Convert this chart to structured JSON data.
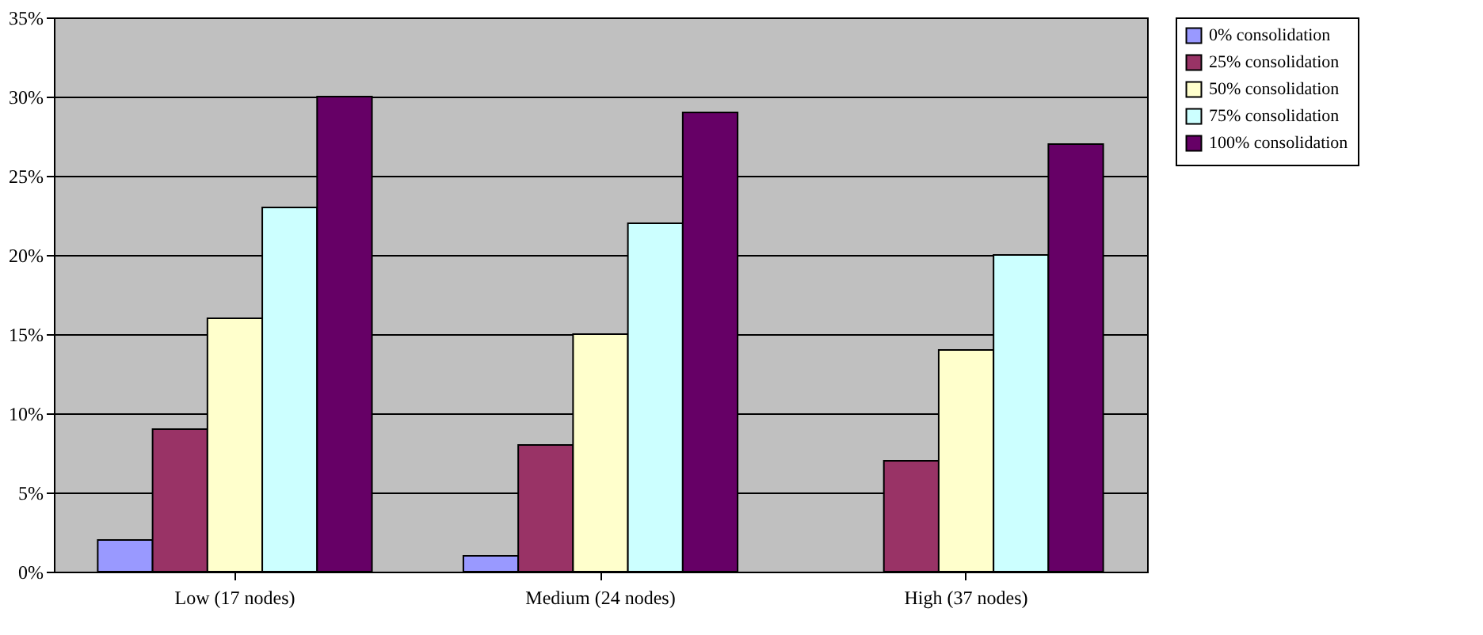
{
  "chart_data": {
    "type": "bar",
    "categories": [
      "Low (17 nodes)",
      "Medium (24 nodes)",
      "High (37 nodes)"
    ],
    "series": [
      {
        "name": "0% consolidation",
        "color": "#9999ff",
        "values": [
          2,
          1,
          null
        ]
      },
      {
        "name": "25% consolidation",
        "color": "#993366",
        "values": [
          9,
          8,
          7
        ]
      },
      {
        "name": "50% consolidation",
        "color": "#ffffcc",
        "values": [
          16,
          15,
          14
        ]
      },
      {
        "name": "75% consolidation",
        "color": "#ccffff",
        "values": [
          23,
          22,
          20
        ]
      },
      {
        "name": "100% consolidation",
        "color": "#660066",
        "values": [
          30,
          29,
          27
        ]
      }
    ],
    "ylim": [
      0,
      35
    ],
    "yticks": [
      {
        "value": 0,
        "label": "0%"
      },
      {
        "value": 5,
        "label": "5%"
      },
      {
        "value": 10,
        "label": "10%"
      },
      {
        "value": 15,
        "label": "15%"
      },
      {
        "value": 20,
        "label": "20%"
      },
      {
        "value": 25,
        "label": "25%"
      },
      {
        "value": 30,
        "label": "30%"
      },
      {
        "value": 35,
        "label": "35%"
      }
    ],
    "grid": "y",
    "legend": "top right"
  }
}
